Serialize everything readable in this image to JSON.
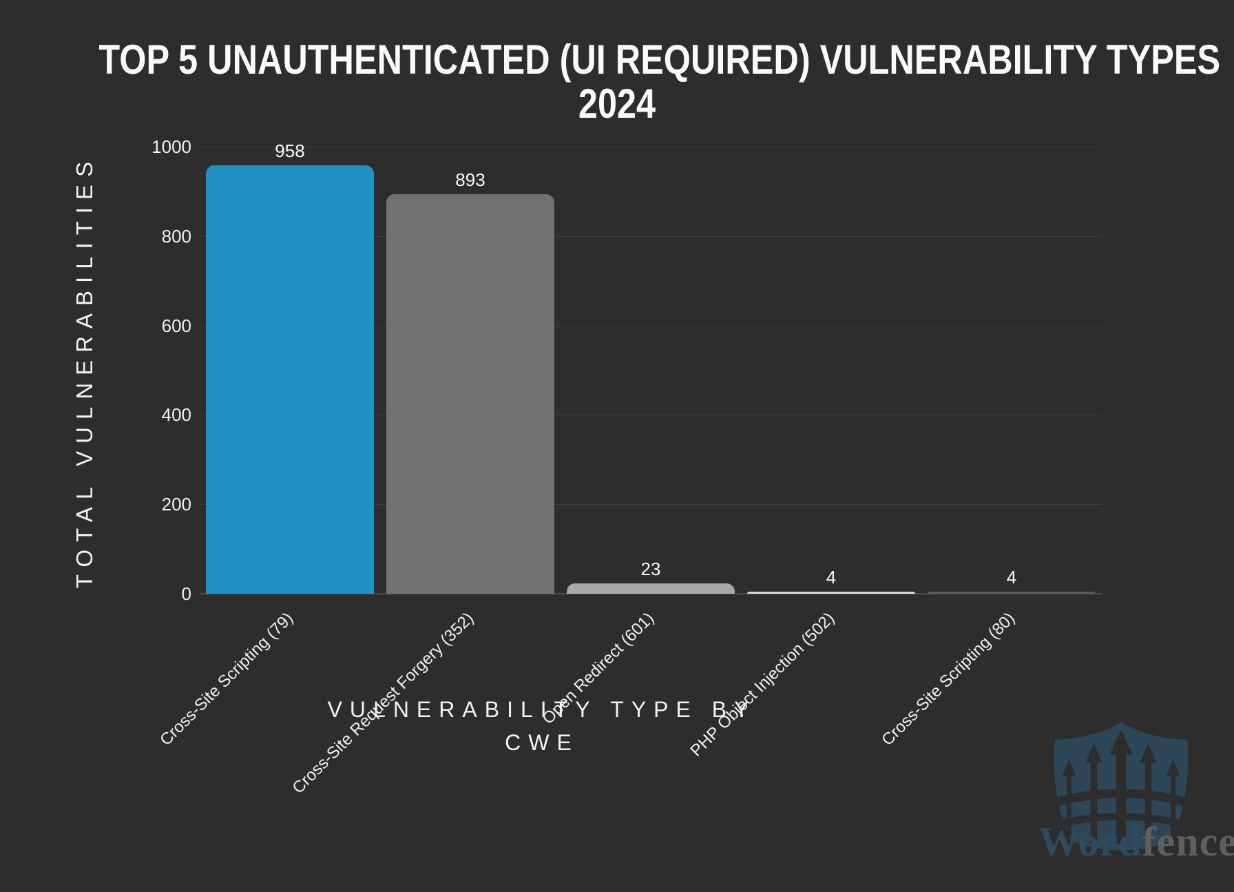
{
  "background_color": "#2d2d2d",
  "title": {
    "line1": "TOP 5 UNAUTHENTICATED (UI REQUIRED) VULNERABILITY TYPES",
    "line2": "2024"
  },
  "chart_data": {
    "type": "bar",
    "title": "TOP 5 UNAUTHENTICATED (UI REQUIRED) VULNERABILITY TYPES 2024",
    "categories": [
      "Cross-Site Scripting (79)",
      "Cross-Site Request Forgery (352)",
      "Open Redirect (601)",
      "PHP Object Injection (502)",
      "Cross-Site Scripting (80)"
    ],
    "values": [
      958,
      893,
      23,
      4,
      4
    ],
    "bar_colors": [
      "#2191c4",
      "#727272",
      "#a8a8a8",
      "#d9d9d9",
      "#5e5e5e"
    ],
    "value_labels": [
      "958",
      "893",
      "23",
      "4",
      "4"
    ],
    "xlabel": "VULNERABILITY TYPE BY CWE",
    "ylabel": "TOTAL VULNERABILITIES",
    "ylim": [
      0,
      1000
    ],
    "yticks": [
      1000,
      800,
      600,
      400,
      200,
      0
    ],
    "grid": "horizontal-only",
    "gridline_color": "#3e3e3e",
    "legend": "none",
    "bar_label_color": "#fafafa",
    "tick_label_color": "#f0f0f0"
  },
  "axis_display": {
    "xlabel_line1": "VULNERABILITY TYPE BY",
    "xlabel_line2": "CWE"
  },
  "logo": {
    "brand_part1": "Word",
    "brand_part2": "fence",
    "registered_mark": "®",
    "shield_color": "#2d4759",
    "picket_color": "#2d2d2d",
    "word_color": "#31495c",
    "fence_color": "#5f5f5f"
  }
}
